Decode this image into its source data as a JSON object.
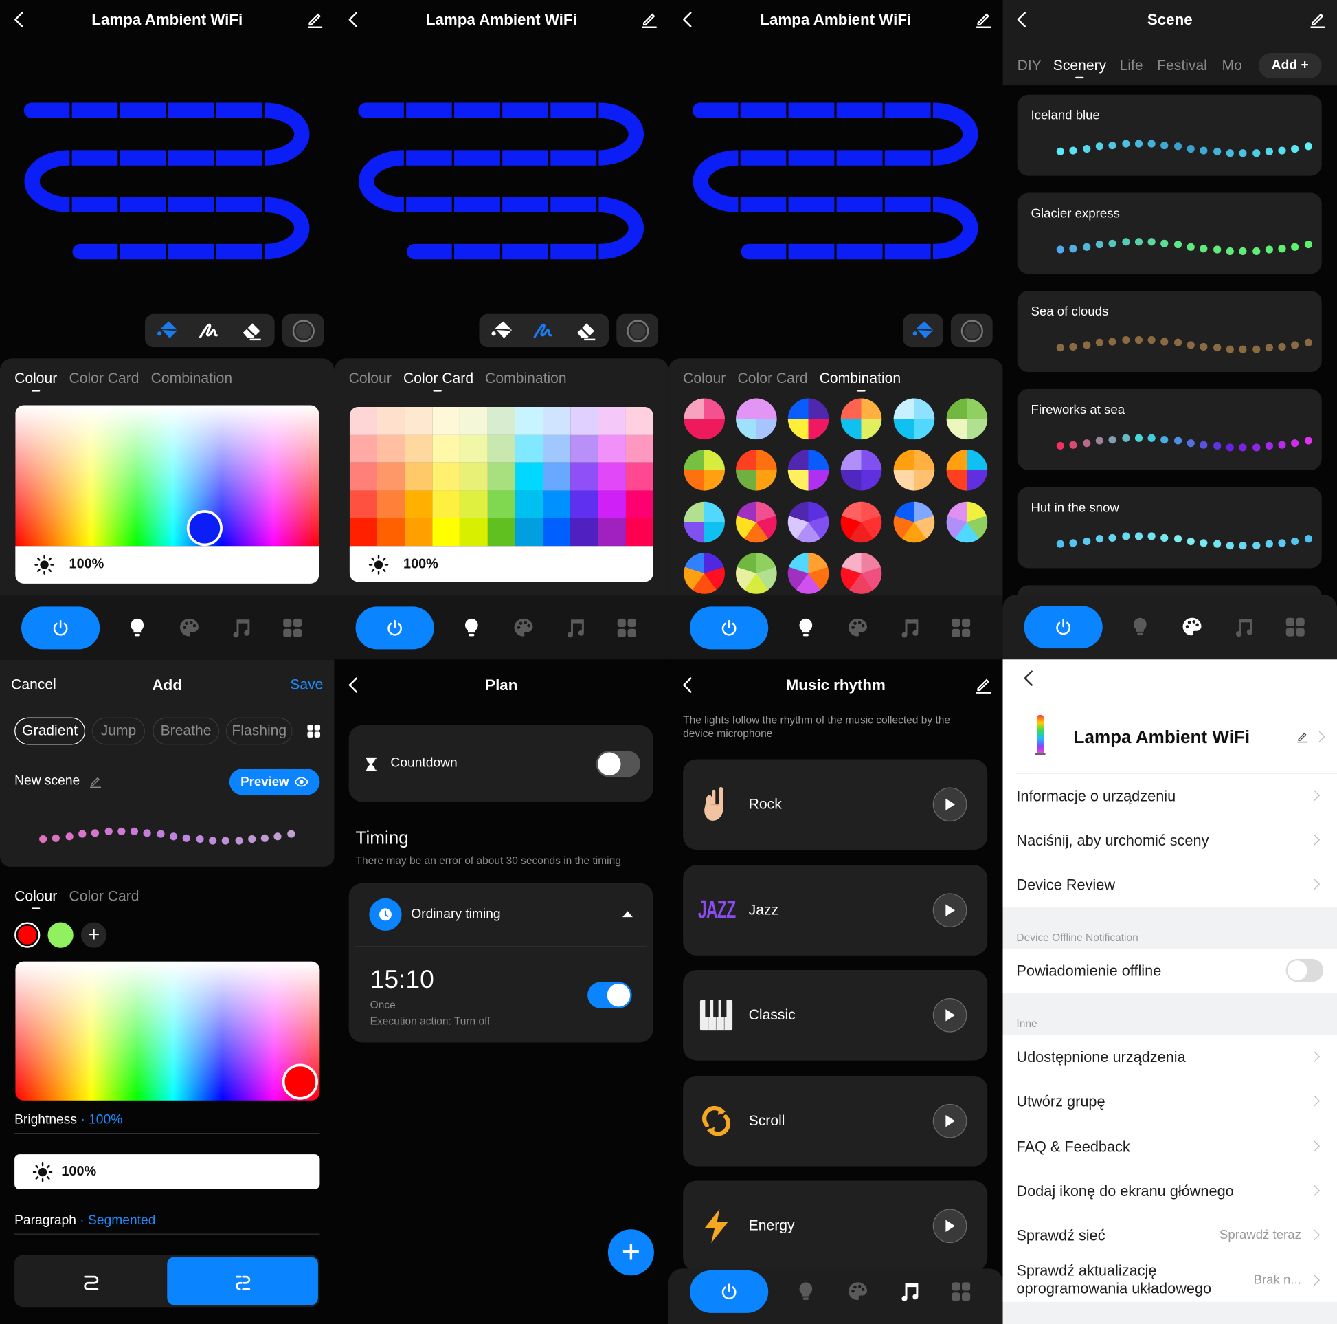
{
  "colors": {
    "accent": "#0a84ff",
    "strip": "#0a1ef5",
    "save": "#1e8cff"
  },
  "device": {
    "title": "Lampa Ambient WiFi"
  },
  "light_control": {
    "tabs": [
      "Colour",
      "Color Card",
      "Combination"
    ],
    "brightness": "100%",
    "views": [
      {
        "active_tab": 0,
        "tools": [
          "paint-bucket-icon",
          "brush-icon",
          "eraser-icon"
        ],
        "active_tool": 0
      },
      {
        "active_tab": 1,
        "tools": [
          "paint-bucket-icon",
          "brush-icon",
          "eraser-icon"
        ],
        "active_tool": 1
      },
      {
        "active_tab": 2,
        "tools": [
          "paint-bucket-icon"
        ],
        "active_tool": 0
      }
    ],
    "selected_color": "#0a1ef5",
    "color_card": [
      [
        "#ffd6d6",
        "#ffe0cc",
        "#ffe8d0",
        "#fff8d8",
        "#f4f8d8",
        "#d8ecd0",
        "#c8f4ff",
        "#d0e4ff",
        "#e0d0ff",
        "#f4c8f8",
        "#ffd0e0"
      ],
      [
        "#ffaaa5",
        "#ffbfa0",
        "#ffd8a0",
        "#fff8a8",
        "#f0f8a8",
        "#c8e8b0",
        "#80e8ff",
        "#a0c8ff",
        "#b890f8",
        "#f090f8",
        "#ff98c0"
      ],
      [
        "#ff8078",
        "#ff9868",
        "#ffc868",
        "#fff070",
        "#e8f078",
        "#a8e080",
        "#00d8ff",
        "#68a8ff",
        "#9050f8",
        "#e048f8",
        "#ff4890"
      ],
      [
        "#ff5040",
        "#ff8038",
        "#ffb000",
        "#fff040",
        "#e0f040",
        "#80d850",
        "#00c0f0",
        "#0090ff",
        "#6030f0",
        "#d020f8",
        "#ff0070"
      ],
      [
        "#ff2000",
        "#ff6000",
        "#ffa000",
        "#ffff00",
        "#d8f000",
        "#60c020",
        "#00a0e0",
        "#0060ff",
        "#5020c0",
        "#a020c0",
        "#ff0050"
      ]
    ],
    "combinations": [
      [
        "#f5508f",
        "#ee1a5c",
        "#ee1a5c",
        "#f7a3c0"
      ],
      [
        "#e295f5",
        "#a8c4ff",
        "#9fe0fb",
        "#e295f5"
      ],
      [
        "#5028b0",
        "#f01860",
        "#ffef3a",
        "#0a5cff"
      ],
      [
        "#ffb040",
        "#e0ee60",
        "#10c0f0",
        "#ff6450"
      ],
      [
        "#90e0ff",
        "#50d8ff",
        "#10c0f0",
        "#c8f0ff"
      ],
      [
        "#90d060",
        "#b0e090",
        "#eef6c0",
        "#70b840"
      ],
      [
        "#d8ec40",
        "#ffa010",
        "#ff7010",
        "#78c040"
      ],
      [
        "#ff7010",
        "#ffa010",
        "#70b040",
        "#ff4020"
      ],
      [
        "#0a5cff",
        "#b030f0",
        "#fff060",
        "#5028b0"
      ],
      [
        "#8050f0",
        "#6030e0",
        "#5028c0",
        "#b090f8"
      ],
      [
        "#ffb040",
        "#ffc070",
        "#ffd8a8",
        "#ffa010"
      ],
      [
        "#10c0f0",
        "#6030e0",
        "#ff4020",
        "#ffa010"
      ],
      [
        "#50d8ff",
        "#10c0f0",
        "#8050f0",
        "#b0e090"
      ],
      [
        "#f05090",
        "#f01860",
        "#ff7010",
        "#ffe020",
        "#a030c0"
      ],
      [
        "#5a30e0",
        "#8050f0",
        "#b090f8",
        "#d8c8ff",
        "#5028b0"
      ],
      [
        "#ff5050",
        "#ff3030",
        "#f02020",
        "#ff0000",
        "#ff6060"
      ],
      [
        "#80a8ff",
        "#ffc070",
        "#ffa010",
        "#ff7010",
        "#0a5cff"
      ],
      [
        "#f0f040",
        "#90d060",
        "#50d8ff",
        "#b090f8",
        "#e090f0"
      ],
      [
        "#5028e0",
        "#ff1020",
        "#ff5010",
        "#ffa010",
        "#3080ff"
      ],
      [
        "#90d060",
        "#b0e090",
        "#d8ec40",
        "#e8f0a0",
        "#70b840"
      ],
      [
        "#ffa030",
        "#ff7010",
        "#d050f0",
        "#a030c0",
        "#50d8ff"
      ],
      [
        "#f080a0",
        "#f05080",
        "#f04060",
        "#ff1020",
        "#f8b0c8"
      ]
    ]
  },
  "nav": {
    "items": [
      "power-icon",
      "bulb-icon",
      "palette-icon",
      "music-icon",
      "grid-icon"
    ]
  },
  "scene": {
    "title": "Scene",
    "tabs": [
      "DIY",
      "Scenery",
      "Life",
      "Festival",
      "Mo"
    ],
    "active_tab": 1,
    "add_label": "Add +",
    "cards": [
      {
        "name": "Iceland blue",
        "dot_colors": [
          "#5ee8f5",
          "#3a9ccc",
          "#5ef0f8"
        ]
      },
      {
        "name": "Glacier express",
        "dot_colors": [
          "#50a8f0",
          "#60e880",
          "#60f070"
        ]
      },
      {
        "name": "Sea of clouds",
        "dot_colors": [
          "#8a6a40",
          "#8a6a40"
        ]
      },
      {
        "name": "Fireworks at sea",
        "dot_colors": [
          "#f03060",
          "#40e0e0",
          "#6020e0",
          "#e030f0"
        ]
      },
      {
        "name": "Hut in the snow",
        "dot_colors": [
          "#50c0f0",
          "#80f0f0",
          "#50c0f0"
        ]
      }
    ]
  },
  "add_scene": {
    "cancel": "Cancel",
    "title": "Add",
    "save": "Save",
    "modes": [
      "Gradient",
      "Jump",
      "Breathe",
      "Flashing"
    ],
    "active_mode": 0,
    "name": "New scene",
    "preview": "Preview",
    "dot_colors": [
      "#e070c0",
      "#c080e0",
      "#c0a0d0"
    ],
    "tabs": [
      "Colour",
      "Color Card"
    ],
    "active_tab": 0,
    "colors": [
      "#ff0000",
      "#90f060"
    ],
    "selected_color_index": 0,
    "brightness_label": "Brightness",
    "brightness_value": "100%",
    "brightness": "100%",
    "paragraph_label": "Paragraph",
    "paragraph_value": "Segmented",
    "segment_active": 1
  },
  "plan": {
    "title": "Plan",
    "countdown": "Countdown",
    "countdown_on": false,
    "timing_title": "Timing",
    "timing_note": "There may be an error of about 30 seconds in the timing",
    "ordinary": "Ordinary timing",
    "time": "15:10",
    "repeat": "Once",
    "action": "Execution action: Turn off",
    "enabled": true
  },
  "music": {
    "title": "Music rhythm",
    "description": "The lights follow the rhythm of the music collected by the device microphone",
    "modes": [
      {
        "label": "Rock",
        "icon": "rock-hand-icon"
      },
      {
        "label": "Jazz",
        "icon": "jazz-icon",
        "icon_text": "JAZZ"
      },
      {
        "label": "Classic",
        "icon": "piano-icon"
      },
      {
        "label": "Scroll",
        "icon": "scroll-arrows-icon"
      },
      {
        "label": "Energy",
        "icon": "lightning-icon"
      }
    ]
  },
  "settings": {
    "device_name": "Lampa Ambient WiFi",
    "items": [
      "Informacje o urządzeniu",
      "Naciśnij, aby urchomić sceny",
      "Device Review"
    ],
    "offline_section": "Device Offline Notification",
    "offline_label": "Powiadomienie offline",
    "offline_on": false,
    "other_section": "Inne",
    "other_items": [
      {
        "label": "Udostępnione urządzenia"
      },
      {
        "label": "Utwórz grupę"
      },
      {
        "label": "FAQ & Feedback"
      },
      {
        "label": "Dodaj ikonę do ekranu głównego"
      },
      {
        "label": "Sprawdź sieć",
        "value": "Sprawdź teraz"
      },
      {
        "label": "Sprawdź aktualizację oprogramowania układowego",
        "value": "Brak n..."
      }
    ]
  }
}
